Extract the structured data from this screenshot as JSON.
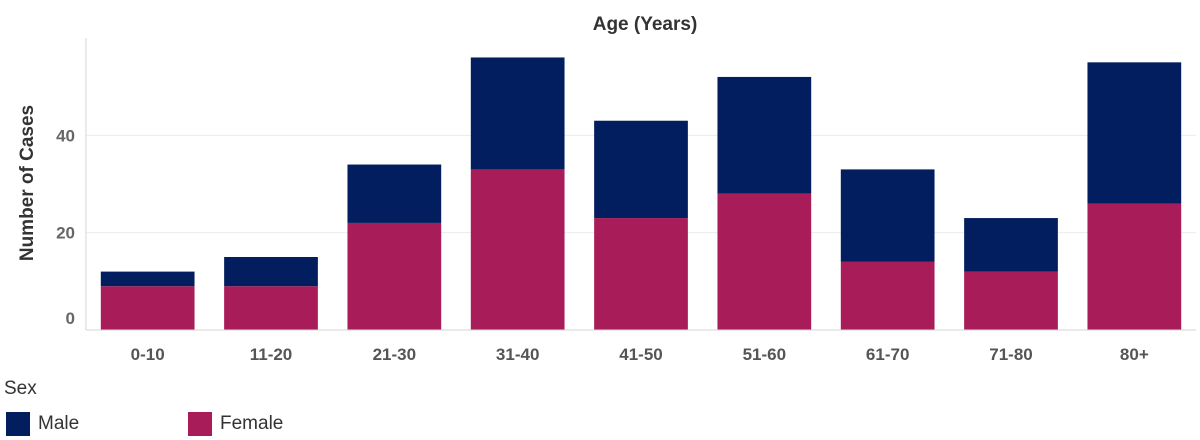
{
  "chart_data": {
    "type": "bar",
    "stacked": true,
    "title": "Age (Years)",
    "xlabel": "",
    "ylabel": "Number of Cases",
    "categories": [
      "0-10",
      "11-20",
      "21-30",
      "31-40",
      "41-50",
      "51-60",
      "61-70",
      "71-80",
      "80+"
    ],
    "series": [
      {
        "name": "Female",
        "color": "#a81d59",
        "values": [
          9,
          9,
          22,
          33,
          23,
          28,
          14,
          12,
          26
        ]
      },
      {
        "name": "Male",
        "color": "#031e5e",
        "values": [
          3,
          6,
          12,
          23,
          20,
          24,
          19,
          11,
          29
        ]
      }
    ],
    "yticks": [
      0,
      20,
      40
    ],
    "ylim": [
      0,
      60
    ],
    "grid": true,
    "legend": {
      "title": "Sex",
      "placement": "bottom-left"
    }
  },
  "legend": {
    "title": "Sex",
    "items": [
      {
        "label": "Male",
        "color": "#031e5e"
      },
      {
        "label": "Female",
        "color": "#a81d59"
      }
    ]
  }
}
